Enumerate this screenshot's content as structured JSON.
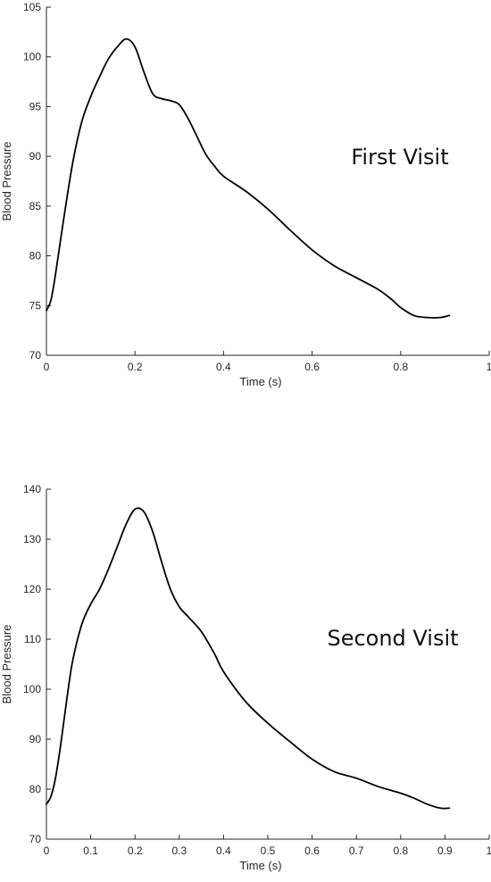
{
  "chart_data": [
    {
      "type": "line",
      "title": "",
      "xlabel": "Time (s)",
      "ylabel": "Blood Pressure",
      "xlim": [
        0,
        1
      ],
      "ylim": [
        70,
        105
      ],
      "xticks": [
        0,
        0.2,
        0.4,
        0.6,
        0.8,
        1
      ],
      "xtick_labels": [
        "0",
        "0.2",
        "0.4",
        "0.6",
        "0.8",
        "1"
      ],
      "yticks": [
        70,
        75,
        80,
        85,
        90,
        95,
        100,
        105
      ],
      "ytick_labels": [
        "70",
        "75",
        "80",
        "85",
        "90",
        "95",
        "100",
        "105"
      ],
      "grid": false,
      "annotation": "First Visit",
      "series": [
        {
          "x": [
            0,
            0.01,
            0.02,
            0.04,
            0.06,
            0.08,
            0.1,
            0.12,
            0.14,
            0.16,
            0.18,
            0.2,
            0.22,
            0.24,
            0.26,
            0.28,
            0.3,
            0.32,
            0.34,
            0.36,
            0.38,
            0.4,
            0.45,
            0.5,
            0.55,
            0.6,
            0.65,
            0.7,
            0.75,
            0.78,
            0.8,
            0.83,
            0.86,
            0.89,
            0.91
          ],
          "y": [
            74.5,
            75.5,
            78,
            84,
            89.5,
            93.5,
            96,
            98,
            99.8,
            101,
            101.8,
            101,
            98.5,
            96.3,
            95.8,
            95.6,
            95.2,
            93.8,
            92,
            90.2,
            89,
            88,
            86.5,
            84.7,
            82.6,
            80.6,
            79,
            77.8,
            76.6,
            75.6,
            74.8,
            74.0,
            73.8,
            73.8,
            74.0
          ]
        }
      ]
    },
    {
      "type": "line",
      "title": "",
      "xlabel": "Time (s)",
      "ylabel": "Blood Pressure",
      "xlim": [
        0,
        1
      ],
      "ylim": [
        70,
        140
      ],
      "xticks": [
        0,
        0.1,
        0.2,
        0.3,
        0.4,
        0.5,
        0.6,
        0.7,
        0.8,
        0.9,
        1
      ],
      "xtick_labels": [
        "0",
        "0.1",
        "0.2",
        "0.3",
        "0.4",
        "0.5",
        "0.6",
        "0.7",
        "0.8",
        "0.9",
        "1"
      ],
      "yticks": [
        70,
        80,
        90,
        100,
        110,
        120,
        130,
        140
      ],
      "ytick_labels": [
        "70",
        "80",
        "90",
        "100",
        "110",
        "120",
        "130",
        "140"
      ],
      "grid": false,
      "annotation": "Second Visit",
      "series": [
        {
          "x": [
            0,
            0.01,
            0.02,
            0.03,
            0.04,
            0.05,
            0.06,
            0.08,
            0.1,
            0.12,
            0.14,
            0.16,
            0.18,
            0.2,
            0.22,
            0.24,
            0.26,
            0.28,
            0.3,
            0.32,
            0.35,
            0.38,
            0.4,
            0.45,
            0.5,
            0.55,
            0.6,
            0.65,
            0.7,
            0.75,
            0.8,
            0.83,
            0.86,
            0.89,
            0.91
          ],
          "y": [
            77,
            78.5,
            82,
            87.5,
            94,
            100.5,
            106,
            113,
            117,
            120,
            124,
            128.5,
            133,
            136,
            135.5,
            131.5,
            125.5,
            120,
            116.5,
            114.5,
            111.5,
            107,
            103.5,
            97.5,
            93.2,
            89.5,
            86,
            83.5,
            82.2,
            80.5,
            79.2,
            78.2,
            77,
            76.2,
            76.2
          ]
        }
      ]
    }
  ]
}
